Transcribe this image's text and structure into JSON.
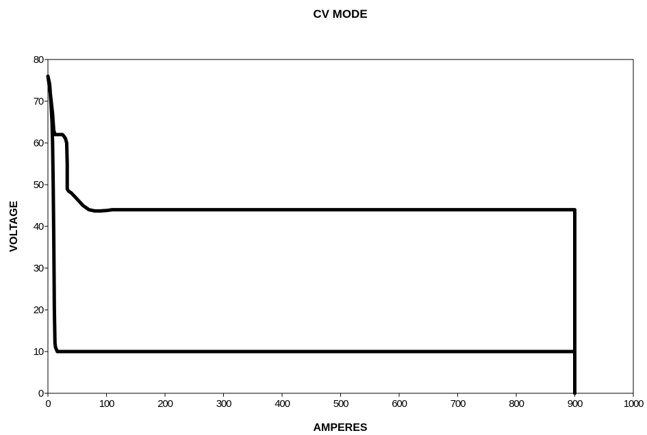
{
  "chart_data": {
    "type": "line",
    "title": "CV MODE",
    "xlabel": "AMPERES",
    "ylabel": "VOLTAGE",
    "xlim": [
      0,
      1000
    ],
    "ylim": [
      0,
      80
    ],
    "x_ticks": [
      0,
      100,
      200,
      300,
      400,
      500,
      600,
      700,
      800,
      900,
      1000
    ],
    "y_ticks": [
      0,
      10,
      20,
      30,
      40,
      50,
      60,
      70,
      80
    ],
    "grid": false,
    "legend": "none",
    "line_color": "#000000",
    "series": [
      {
        "x": [
          0,
          4,
          8,
          10,
          12,
          14,
          16,
          20,
          25,
          28,
          30,
          32,
          33,
          33,
          35,
          40,
          50,
          60,
          70,
          80,
          90,
          100,
          110,
          500,
          900,
          900,
          500,
          16,
          13,
          12,
          11,
          10,
          9,
          8,
          7,
          5,
          3,
          0
        ],
        "y": [
          76,
          72,
          67,
          63,
          62,
          62,
          62,
          62,
          62,
          61.5,
          61,
          60,
          55,
          49,
          48.5,
          48,
          46.5,
          45,
          44,
          43.7,
          43.7,
          43.8,
          44,
          44,
          44,
          10,
          10,
          10,
          11,
          12,
          20,
          38,
          50,
          60,
          65,
          70,
          74,
          76
        ]
      },
      {
        "x": [
          900,
          900
        ],
        "y": [
          10,
          0
        ]
      }
    ]
  }
}
